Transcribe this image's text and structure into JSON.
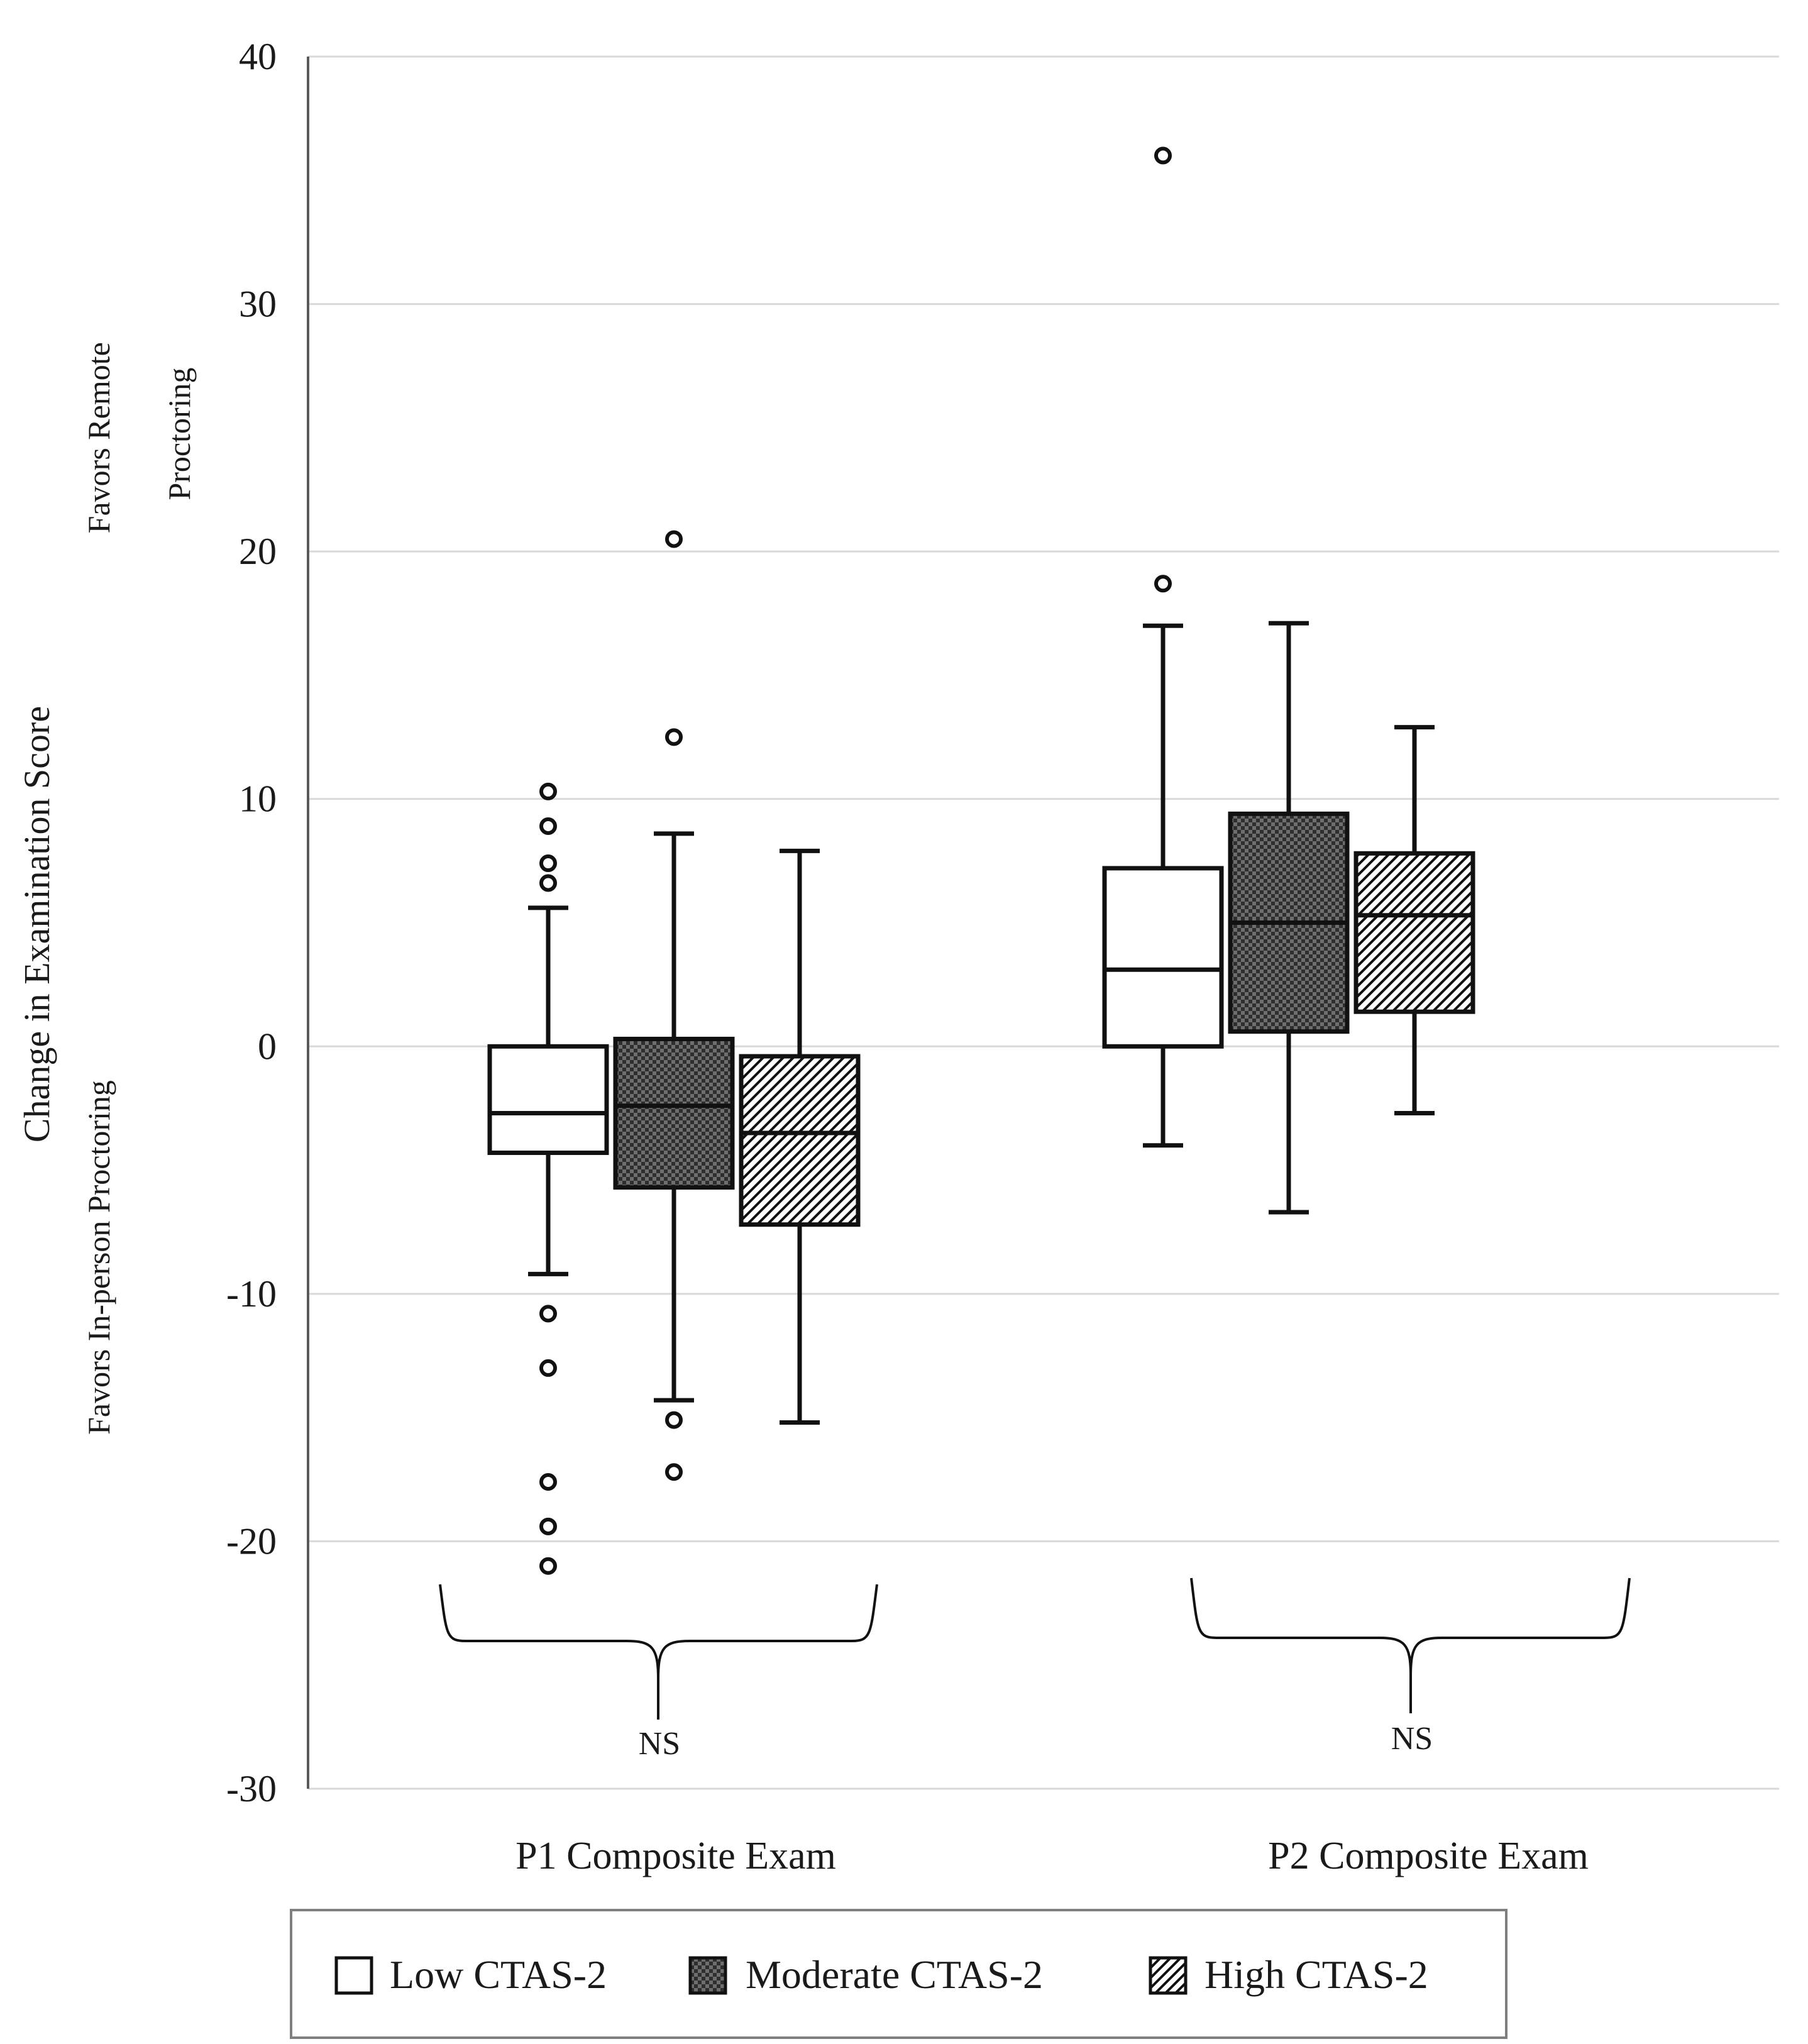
{
  "chart_data": {
    "type": "boxplot",
    "ylabel": "Change in Examination Score",
    "side_labels": {
      "upper": "Favors Remote Proctoring",
      "lower": "Favors In-person Proctoring"
    },
    "ylim": [
      -30,
      40
    ],
    "yticks": [
      -30,
      -20,
      -10,
      0,
      10,
      20,
      30,
      40
    ],
    "grid": true,
    "categories": [
      "P1 Composite Exam",
      "P2 Composite Exam"
    ],
    "series": [
      {
        "name": "Low CTAS-2",
        "pattern": "none",
        "boxes": [
          {
            "whisker_low": -9.2,
            "q1": -4.3,
            "median": -2.7,
            "q3": 0,
            "whisker_high": 5.6,
            "outliers": [
              10.3,
              8.9,
              7.4,
              6.6,
              -10.8,
              -13.0,
              -17.6,
              -19.4,
              -21.0
            ]
          },
          {
            "whisker_low": -4.0,
            "q1": 0,
            "median": 3.1,
            "q3": 7.2,
            "whisker_high": 17.0,
            "outliers": [
              36.0,
              18.7
            ]
          }
        ]
      },
      {
        "name": "Moderate CTAS-2",
        "pattern": "checker",
        "boxes": [
          {
            "whisker_low": -14.3,
            "q1": -5.7,
            "median": -2.4,
            "q3": 0.3,
            "whisker_high": 8.6,
            "outliers": [
              20.5,
              12.5,
              -15.1,
              -17.2
            ]
          },
          {
            "whisker_low": -6.7,
            "q1": 0.6,
            "median": 5.0,
            "q3": 9.4,
            "whisker_high": 17.1,
            "outliers": []
          }
        ]
      },
      {
        "name": "High CTAS-2",
        "pattern": "diagonal",
        "boxes": [
          {
            "whisker_low": -15.2,
            "q1": -7.2,
            "median": -3.5,
            "q3": -0.4,
            "whisker_high": 7.9,
            "outliers": []
          },
          {
            "whisker_low": -2.7,
            "q1": 1.4,
            "median": 5.3,
            "q3": 7.8,
            "whisker_high": 12.9,
            "outliers": []
          }
        ]
      }
    ],
    "annotations": [
      {
        "category": "P1 Composite Exam",
        "text": "NS"
      },
      {
        "category": "P2 Composite Exam",
        "text": "NS"
      }
    ],
    "legend": {
      "position": "bottom-center",
      "entries": [
        "Low CTAS-2",
        "Moderate CTAS-2",
        "High CTAS-2"
      ]
    },
    "colors": {
      "stroke": "#111111",
      "fill_low": "#ffffff",
      "fill_moderate": "#4a4a4a",
      "grid": "#d9d9d9",
      "axis": "#595959"
    }
  }
}
